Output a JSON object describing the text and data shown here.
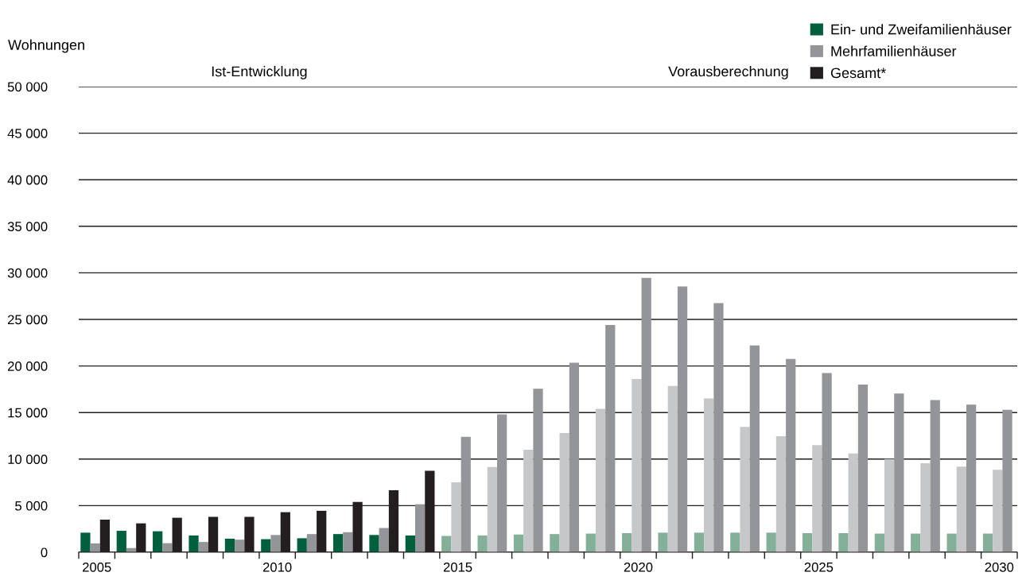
{
  "chart_data": {
    "type": "bar",
    "ylabel": "Wohnungen",
    "annotations": [
      "Ist-Entwicklung",
      "Vorausberechnung"
    ],
    "categories": [
      "2005",
      null,
      null,
      null,
      null,
      "2010",
      null,
      null,
      null,
      null,
      "2015",
      null,
      null,
      null,
      null,
      "2020",
      null,
      null,
      null,
      null,
      "2025",
      null,
      null,
      null,
      null,
      "2030"
    ],
    "ylim": [
      0,
      50000
    ],
    "yticks": [
      0,
      {
        "value": 5000,
        "label": "5 000"
      },
      {
        "value": 10000,
        "label": "10 000"
      },
      {
        "value": 15000,
        "label": "15 000"
      },
      {
        "value": 20000,
        "label": "20 000"
      },
      {
        "value": 25000,
        "label": "25 000"
      },
      {
        "value": 30000,
        "label": "30 000"
      },
      {
        "value": 35000,
        "label": "35 000"
      },
      {
        "value": 40000,
        "label": "40 000"
      },
      {
        "value": 45000,
        "label": "45 000"
      },
      {
        "value": 50000,
        "label": "50 000"
      }
    ],
    "grid": "y",
    "legend": "top right",
    "series": [
      {
        "name": "Ein- und Zweifamilienhäuser",
        "color": "#005f3c",
        "colors": [
          "#005f3c",
          "#005f3c",
          "#005f3c",
          "#005f3c",
          "#005f3c",
          "#005f3c",
          "#005f3c",
          "#005f3c",
          "#005f3c",
          "#005f3c",
          "#84b09a",
          "#84b09a",
          "#84b09a",
          "#84b09a",
          "#84b09a",
          "#84b09a",
          "#84b09a",
          "#84b09a",
          "#84b09a",
          "#84b09a",
          "#84b09a",
          "#84b09a",
          "#84b09a",
          "#84b09a",
          "#84b09a",
          "#84b09a"
        ],
        "values": [
          2100,
          2300,
          2250,
          1800,
          1450,
          1400,
          1500,
          1950,
          1850,
          1800,
          1750,
          1800,
          1900,
          1950,
          2000,
          2050,
          2100,
          2100,
          2100,
          2100,
          2050,
          2050,
          2000,
          2000,
          2000,
          2000
        ]
      },
      {
        "name": "Mehrfamilienhäuser",
        "color": "#949598",
        "colors": [
          "#949598",
          "#949598",
          "#949598",
          "#949598",
          "#949598",
          "#949598",
          "#949598",
          "#949598",
          "#949598",
          "#949598",
          "#c6c7c9",
          "#c6c7c9",
          "#c6c7c9",
          "#c6c7c9",
          "#c6c7c9",
          "#c6c7c9",
          "#c6c7c9",
          "#c6c7c9",
          "#c6c7c9",
          "#c6c7c9",
          "#c6c7c9",
          "#c6c7c9",
          "#c6c7c9",
          "#c6c7c9",
          "#c6c7c9",
          "#c6c7c9"
        ],
        "values": [
          950,
          450,
          970,
          1100,
          1350,
          1850,
          1950,
          2150,
          2600,
          5150,
          7500,
          9150,
          11000,
          12800,
          15400,
          18600,
          17850,
          16500,
          13450,
          12450,
          11500,
          10600,
          10000,
          9550,
          9200,
          8850
        ]
      },
      {
        "name": "Gesamt*",
        "color": "#231f20",
        "colors": [
          "#231f20",
          "#231f20",
          "#231f20",
          "#231f20",
          "#231f20",
          "#231f20",
          "#231f20",
          "#231f20",
          "#231f20",
          "#231f20",
          "#949598",
          "#949598",
          "#949598",
          "#949598",
          "#949598",
          "#949598",
          "#949598",
          "#949598",
          "#949598",
          "#949598",
          "#949598",
          "#949598",
          "#949598",
          "#949598",
          "#949598",
          "#949598"
        ],
        "values": [
          3500,
          3100,
          3700,
          3800,
          3800,
          4300,
          4450,
          5400,
          6650,
          8750,
          12400,
          14800,
          17550,
          20350,
          24400,
          29450,
          28550,
          26750,
          22200,
          20750,
          19250,
          18000,
          17050,
          16350,
          15850,
          15300
        ]
      }
    ]
  }
}
